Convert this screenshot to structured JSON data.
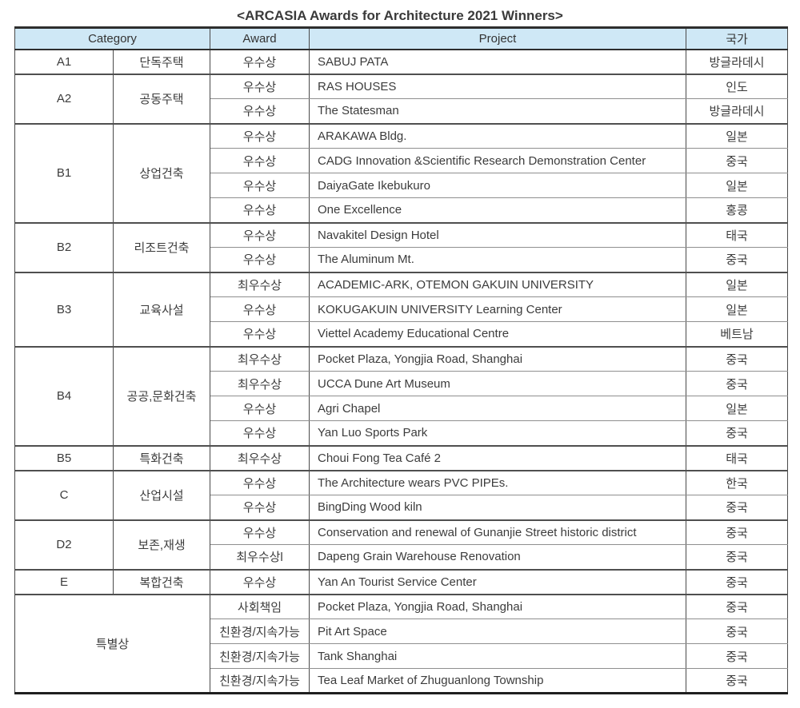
{
  "title": "<ARCASIA Awards for Architecture 2021 Winners>",
  "colors": {
    "header_bg": "#cfe8f6",
    "border_dark": "#2e2e2e",
    "text": "#3c3c3c"
  },
  "table": {
    "headers": {
      "category": "Category",
      "award": "Award",
      "project": "Project",
      "country": "국가"
    },
    "groups": [
      {
        "code": "A1",
        "category": "단독주택",
        "merged": false,
        "rows": [
          {
            "award": "우수상",
            "project": "SABUJ PATA",
            "country": "방글라데시"
          }
        ]
      },
      {
        "code": "A2",
        "category": "공동주택",
        "merged": false,
        "rows": [
          {
            "award": "우수상",
            "project": "RAS HOUSES",
            "country": "인도"
          },
          {
            "award": "우수상",
            "project": "The Statesman",
            "country": "방글라데시"
          }
        ]
      },
      {
        "code": "B1",
        "category": "상업건축",
        "merged": false,
        "rows": [
          {
            "award": "우수상",
            "project": "ARAKAWA Bldg.",
            "country": "일본"
          },
          {
            "award": "우수상",
            "project": "CADG Innovation &Scientific Research Demonstration Center",
            "country": "중국"
          },
          {
            "award": "우수상",
            "project": "DaiyaGate Ikebukuro",
            "country": "일본"
          },
          {
            "award": "우수상",
            "project": "One Excellence",
            "country": "홍콩"
          }
        ]
      },
      {
        "code": "B2",
        "category": "리조트건축",
        "merged": false,
        "rows": [
          {
            "award": "우수상",
            "project": "Navakitel Design Hotel",
            "country": "태국"
          },
          {
            "award": "우수상",
            "project": "The Aluminum Mt.",
            "country": "중국"
          }
        ]
      },
      {
        "code": "B3",
        "category": "교육사설",
        "merged": false,
        "rows": [
          {
            "award": "최우수상",
            "project": "ACADEMIC-ARK, OTEMON GAKUIN UNIVERSITY",
            "country": "일본"
          },
          {
            "award": "우수상",
            "project": "KOKUGAKUIN UNIVERSITY Learning Center",
            "country": "일본"
          },
          {
            "award": "우수상",
            "project": "Viettel Academy Educational Centre",
            "country": "베트남"
          }
        ]
      },
      {
        "code": "B4",
        "category": "공공,문화건축",
        "merged": false,
        "rows": [
          {
            "award": "최우수상",
            "project": "Pocket Plaza, Yongjia Road, Shanghai",
            "country": "중국"
          },
          {
            "award": "최우수상",
            "project": "UCCA Dune Art Museum",
            "country": "중국"
          },
          {
            "award": "우수상",
            "project": "Agri Chapel",
            "country": "일본"
          },
          {
            "award": "우수상",
            "project": "Yan Luo Sports Park",
            "country": "중국"
          }
        ]
      },
      {
        "code": "B5",
        "category": "특화건축",
        "merged": false,
        "rows": [
          {
            "award": "최우수상",
            "project": "Choui Fong Tea Café 2",
            "country": "태국"
          }
        ]
      },
      {
        "code": "C",
        "category": "산업시설",
        "merged": false,
        "rows": [
          {
            "award": "우수상",
            "project": "The Architecture wears PVC PIPEs.",
            "country": "한국"
          },
          {
            "award": "우수상",
            "project": "BingDing Wood kiln",
            "country": "중국"
          }
        ]
      },
      {
        "code": "D2",
        "category": "보존,재생",
        "merged": false,
        "rows": [
          {
            "award": "우수상",
            "project": "Conservation and renewal of Gunanjie Street historic district",
            "country": "중국"
          },
          {
            "award": "최우수상l",
            "project": "Dapeng Grain Warehouse Renovation",
            "country": "중국"
          }
        ]
      },
      {
        "code": "E",
        "category": "복합건축",
        "merged": false,
        "rows": [
          {
            "award": "우수상",
            "project": "Yan An Tourist Service Center",
            "country": "중국"
          }
        ]
      },
      {
        "code": "",
        "category": "특별상",
        "merged": true,
        "rows": [
          {
            "award": "사회책임",
            "project": "Pocket Plaza, Yongjia Road, Shanghai",
            "country": "중국"
          },
          {
            "award": "친환경/지속가능",
            "project": "Pit Art Space",
            "country": "중국"
          },
          {
            "award": "친환경/지속가능",
            "project": "Tank Shanghai",
            "country": "중국"
          },
          {
            "award": "친환경/지속가능",
            "project": "Tea Leaf Market of Zhuguanlong Township",
            "country": "중국"
          }
        ]
      }
    ]
  }
}
